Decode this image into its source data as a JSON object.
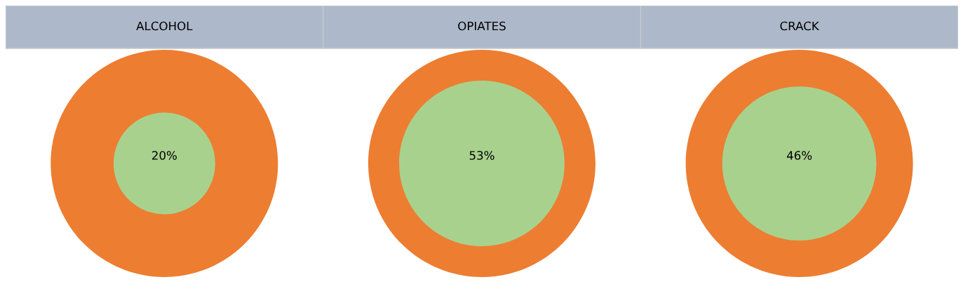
{
  "chart_data": [
    {
      "type": "other",
      "title": "ALCOHOL",
      "values": [
        20
      ],
      "value_labels": [
        "20%"
      ],
      "colors": [
        "#a9d18e"
      ],
      "color": "#ed7d31"
    },
    {
      "type": "other",
      "title": "OPIATES",
      "values": [
        53
      ],
      "value_labels": [
        "53%"
      ],
      "colors": [
        "#a9d18e"
      ],
      "color": "#ed7d31"
    },
    {
      "type": "other",
      "title": "CRACK",
      "values": [
        46
      ],
      "value_labels": [
        "46%"
      ],
      "colors": [
        "#a9d18e"
      ],
      "color": "#ed7d31"
    }
  ]
}
